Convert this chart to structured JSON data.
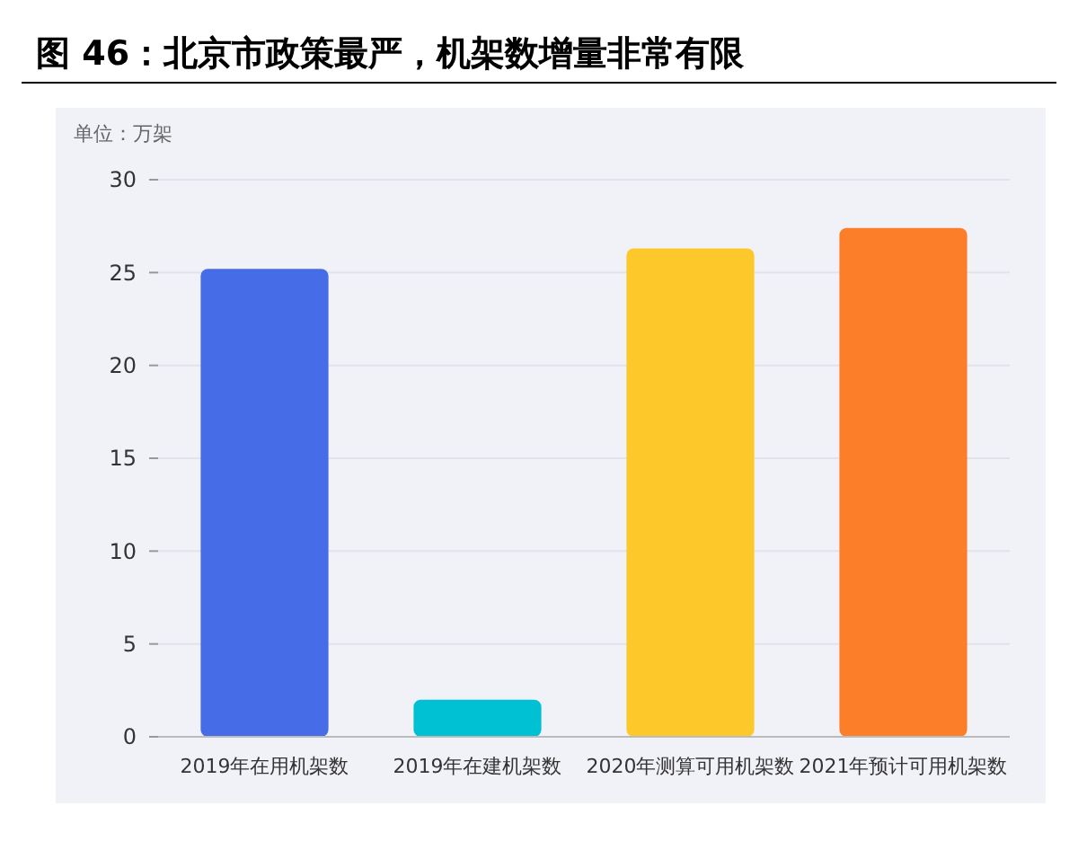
{
  "chart_data": {
    "type": "bar",
    "title": "图 46：北京市政策最严，机架数增量非常有限",
    "ylabel": "单位：万架",
    "categories": [
      "2019年在用机架数",
      "2019年在建机架数",
      "2020年测算可用机架数",
      "2021年预计可用机架数"
    ],
    "values": [
      25.2,
      2.0,
      26.3,
      27.4
    ],
    "colors": [
      "#466ce8",
      "#00c1d4",
      "#fdc829",
      "#fd7e29"
    ],
    "ylim": [
      0,
      30
    ],
    "yticks": [
      0,
      5,
      10,
      15,
      20,
      25,
      30
    ],
    "grid": "y"
  }
}
